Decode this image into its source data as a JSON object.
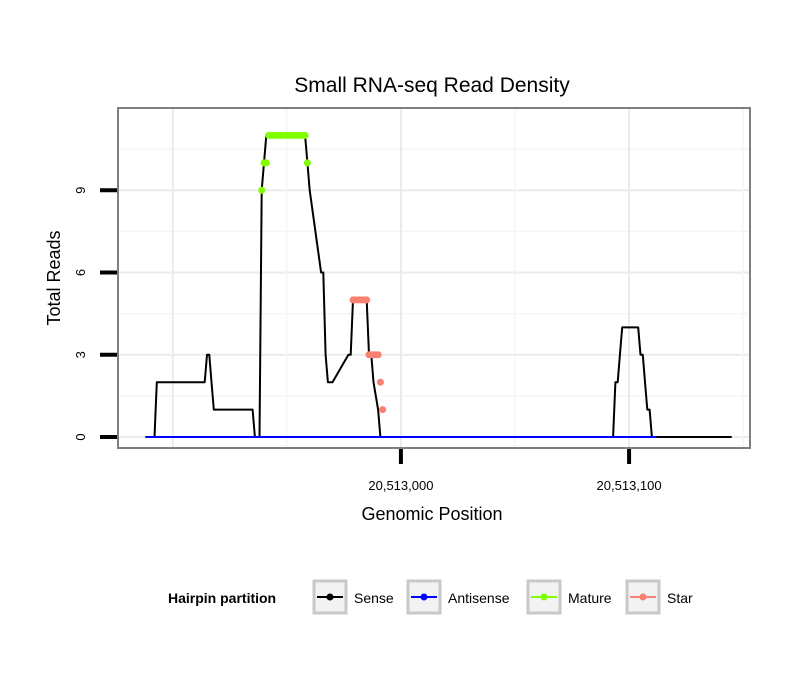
{
  "chart_data": {
    "type": "line",
    "title": "Small RNA-seq Read Density",
    "xlabel": "Genomic Position",
    "ylabel": "Total Reads",
    "xlim": [
      20512876,
      20513153
    ],
    "ylim": [
      -0.4,
      12.0
    ],
    "xticks": [
      {
        "value": 20513000,
        "label": "20,513,000"
      },
      {
        "value": 20513100,
        "label": "20,513,100"
      }
    ],
    "yticks": [
      {
        "value": 0,
        "label": "0"
      },
      {
        "value": 3,
        "label": "3"
      },
      {
        "value": 6,
        "label": "6"
      },
      {
        "value": 9,
        "label": "9"
      }
    ],
    "legend": {
      "title": "Hairpin partition",
      "position": "bottom",
      "items": [
        {
          "name": "Sense",
          "color": "#000000"
        },
        {
          "name": "Antisense",
          "color": "#0000ff"
        },
        {
          "name": "Mature",
          "color": "#7fff00"
        },
        {
          "name": "Star",
          "color": "#fa8072"
        }
      ]
    },
    "series": [
      {
        "name": "Sense",
        "color": "#000000",
        "kind": "line",
        "x": [
          20512888,
          20512892,
          20512893,
          20512914,
          20512915,
          20512916,
          20512917,
          20512918,
          20512935,
          20512936,
          20512938,
          20512939,
          20512940,
          20512941,
          20512958,
          20512959,
          20512960,
          20512965,
          20512966,
          20512967,
          20512968,
          20512969,
          20512970,
          20512977,
          20512978,
          20512979,
          20512985,
          20512986,
          20512987,
          20512988,
          20512990,
          20512991,
          20512993,
          20513021,
          20513024,
          20513025,
          20513145
        ],
        "y": [
          0,
          0,
          2,
          2,
          3,
          3,
          2,
          1,
          1,
          0,
          0,
          9,
          10,
          11,
          11,
          10,
          9,
          6,
          6,
          3,
          2,
          2,
          2,
          3,
          3,
          5,
          5,
          3,
          3,
          2,
          1,
          0,
          0,
          0,
          0,
          0,
          0
        ]
      },
      {
        "name": "Sense",
        "color": "#000000",
        "kind": "line",
        "x": [
          20513093,
          20513094,
          20513095,
          20513096,
          20513097,
          20513101,
          20513104,
          20513105,
          20513106,
          20513107,
          20513108,
          20513109,
          20513110
        ],
        "y": [
          0,
          2,
          2,
          3,
          4,
          4,
          4,
          3,
          3,
          2,
          1,
          1,
          0
        ]
      },
      {
        "name": "Antisense",
        "color": "#0000ff",
        "kind": "line",
        "x": [
          20512888,
          20513112
        ],
        "y": [
          0,
          0
        ]
      },
      {
        "name": "Mature",
        "color": "#7fff00",
        "kind": "points",
        "x": [
          20512939,
          20512940,
          20512941,
          20512942,
          20512943,
          20512944,
          20512945,
          20512946,
          20512947,
          20512948,
          20512949,
          20512950,
          20512951,
          20512952,
          20512953,
          20512954,
          20512955,
          20512956,
          20512957,
          20512958,
          20512959
        ],
        "y": [
          9,
          10,
          10,
          11,
          11,
          11,
          11,
          11,
          11,
          11,
          11,
          11,
          11,
          11,
          11,
          11,
          11,
          11,
          11,
          11,
          10
        ]
      },
      {
        "name": "Star",
        "color": "#fa8072",
        "kind": "points",
        "x": [
          20512979,
          20512980,
          20512981,
          20512982,
          20512983,
          20512984,
          20512985,
          20512986,
          20512987,
          20512988,
          20512989,
          20512990,
          20512991,
          20512992
        ],
        "y": [
          5,
          5,
          5,
          5,
          5,
          5,
          5,
          3,
          3,
          3,
          3,
          3,
          2,
          1
        ]
      }
    ]
  }
}
